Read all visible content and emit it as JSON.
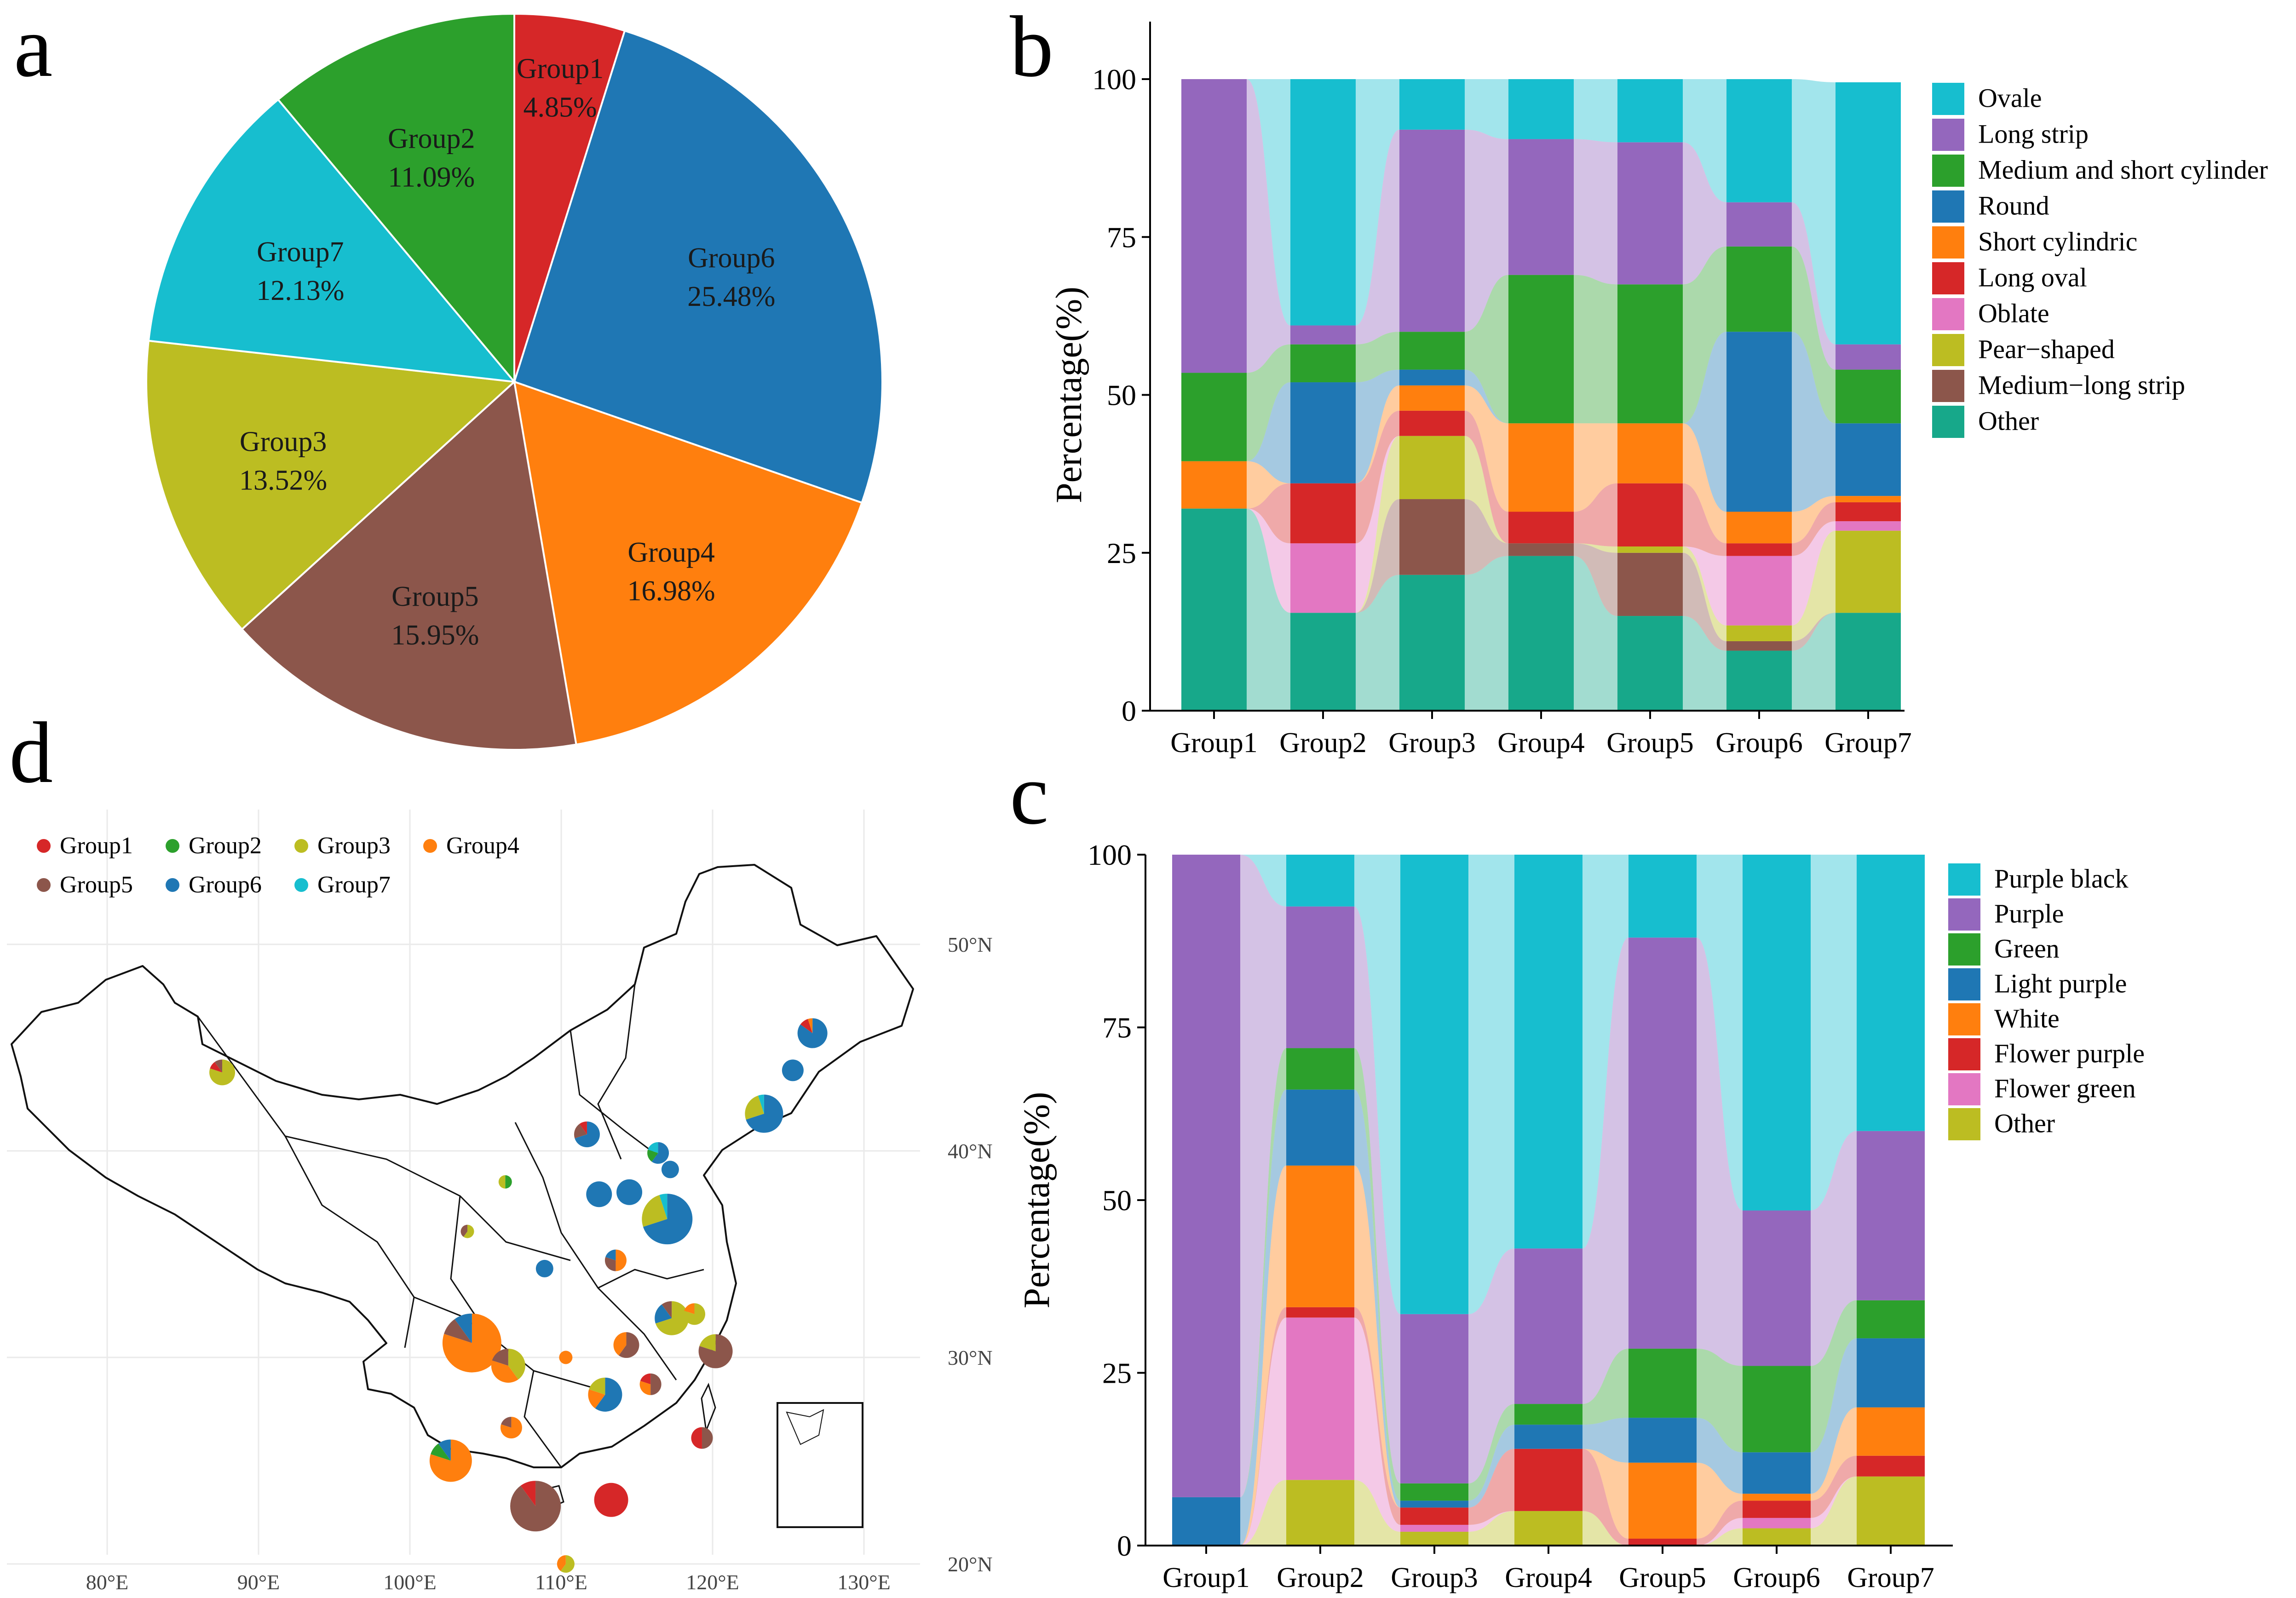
{
  "colors": {
    "group1": "#d62728",
    "group2": "#2ca02c",
    "group3": "#bcbd22",
    "group4": "#ff7f0e",
    "group5": "#8c564b",
    "group6": "#1f77b4",
    "group7": "#17becf",
    "ovale": "#17becf",
    "long_strip": "#9467bd",
    "med_short_cyl": "#2ca02c",
    "round": "#1f77b4",
    "short_cyl": "#ff7f0e",
    "long_oval": "#d62728",
    "oblate": "#e377c2",
    "pear": "#bcbd22",
    "med_long_strip": "#8c564b",
    "other_b": "#17a88a"
  },
  "panels": {
    "a": "a",
    "b": "b",
    "c": "c",
    "d": "d"
  },
  "chart_data": [
    {
      "id": "a",
      "type": "pie",
      "slices": [
        {
          "label": "Group1",
          "pct_label": "4.85%",
          "value": 4.85,
          "color_key": "group1"
        },
        {
          "label": "Group6",
          "pct_label": "25.48%",
          "value": 25.48,
          "color_key": "group6"
        },
        {
          "label": "Group4",
          "pct_label": "16.98%",
          "value": 16.98,
          "color_key": "group4"
        },
        {
          "label": "Group5",
          "pct_label": "15.95%",
          "value": 15.95,
          "color_key": "group5"
        },
        {
          "label": "Group3",
          "pct_label": "13.52%",
          "value": 13.52,
          "color_key": "group3"
        },
        {
          "label": "Group7",
          "pct_label": "12.13%",
          "value": 12.13,
          "color_key": "group7"
        },
        {
          "label": "Group2",
          "pct_label": "11.09%",
          "value": 11.09,
          "color_key": "group2"
        }
      ]
    },
    {
      "id": "b",
      "type": "bar",
      "stacked": true,
      "ylabel": "Percentage(%)",
      "ylim": [
        0,
        100
      ],
      "yticks": [
        "0",
        "25",
        "50",
        "75",
        "100"
      ],
      "categories": [
        "Group1",
        "Group2",
        "Group3",
        "Group4",
        "Group5",
        "Group6",
        "Group7"
      ],
      "series": [
        {
          "name": "Other",
          "color_key": "other_b",
          "values": [
            32,
            15.5,
            21.5,
            24.5,
            15,
            9.5,
            15.5
          ]
        },
        {
          "name": "Medium−long strip",
          "color_key": "med_long_strip",
          "values": [
            0,
            0,
            12,
            2,
            10,
            1.5,
            0
          ]
        },
        {
          "name": "Pear−shaped",
          "color_key": "pear",
          "values": [
            0,
            0,
            10,
            0,
            1,
            2.5,
            13
          ]
        },
        {
          "name": "Oblate",
          "color_key": "oblate",
          "values": [
            0,
            11,
            0,
            0,
            0,
            11,
            1.5
          ]
        },
        {
          "name": "Long oval",
          "color_key": "long_oval",
          "values": [
            0,
            9.5,
            4,
            5,
            10,
            2,
            3
          ]
        },
        {
          "name": "Short cylindric",
          "color_key": "short_cyl",
          "values": [
            7.5,
            0,
            4,
            14,
            9.5,
            5,
            1
          ]
        },
        {
          "name": "Round",
          "color_key": "round",
          "values": [
            0,
            16,
            2.5,
            0,
            0,
            28.5,
            11.5
          ]
        },
        {
          "name": "Medium and short cylinder",
          "color_key": "med_short_cyl",
          "values": [
            14,
            6,
            6,
            23.5,
            22,
            13.5,
            8.5
          ]
        },
        {
          "name": "Long strip",
          "color_key": "long_strip",
          "values": [
            46.5,
            3,
            32,
            21.5,
            22.5,
            7,
            4
          ]
        },
        {
          "name": "Ovale",
          "color_key": "ovale",
          "values": [
            0,
            39,
            8,
            9.5,
            10,
            19.5,
            41.5
          ]
        }
      ],
      "legend_order": [
        "Ovale",
        "Long strip",
        "Medium and short cylinder",
        "Round",
        "Short cylindric",
        "Long oval",
        "Oblate",
        "Pear−shaped",
        "Medium−long strip",
        "Other"
      ]
    },
    {
      "id": "c",
      "type": "bar",
      "stacked": true,
      "ylabel": "Percentage(%)",
      "ylim": [
        0,
        100
      ],
      "yticks": [
        "0",
        "25",
        "50",
        "75",
        "100"
      ],
      "categories": [
        "Group1",
        "Group2",
        "Group3",
        "Group4",
        "Group5",
        "Group6",
        "Group7"
      ],
      "series": [
        {
          "name": "Other",
          "color_key": "pear",
          "values": [
            0,
            9.5,
            2,
            5,
            0,
            2.5,
            10
          ]
        },
        {
          "name": "Flower green",
          "color_key": "oblate",
          "values": [
            0,
            23.5,
            1,
            0,
            0,
            1.5,
            0
          ]
        },
        {
          "name": "Flower purple",
          "color_key": "long_oval",
          "values": [
            0,
            1.5,
            2.5,
            9,
            1,
            2.5,
            3
          ]
        },
        {
          "name": "White",
          "color_key": "short_cyl",
          "values": [
            0,
            20.5,
            0,
            0,
            11,
            1,
            7
          ]
        },
        {
          "name": "Light purple",
          "color_key": "round",
          "values": [
            7,
            11,
            1,
            3.5,
            6.5,
            6,
            10
          ]
        },
        {
          "name": "Green",
          "color_key": "med_short_cyl",
          "values": [
            0,
            6,
            2.5,
            3,
            10,
            12.5,
            5.5
          ]
        },
        {
          "name": "Purple",
          "color_key": "long_strip",
          "values": [
            93,
            20.5,
            24.5,
            22.5,
            59.5,
            22.5,
            24.5
          ]
        },
        {
          "name": "Purple black",
          "color_key": "ovale",
          "values": [
            0,
            7.5,
            66.5,
            57,
            12,
            51.5,
            40
          ]
        }
      ],
      "legend_order": [
        "Purple black",
        "Purple",
        "Green",
        "Light purple",
        "White",
        "Flower purple",
        "Flower green",
        "Other"
      ]
    },
    {
      "id": "d",
      "type": "map",
      "legend": [
        "Group1",
        "Group2",
        "Group3",
        "Group4",
        "Group5",
        "Group6",
        "Group7"
      ],
      "x_ticks": [
        "80°E",
        "90°E",
        "100°E",
        "110°E",
        "120°E",
        "130°E"
      ],
      "x_values": [
        80,
        90,
        100,
        110,
        120,
        130
      ],
      "y_ticks": [
        "50°N",
        "40°N",
        "30°N",
        "20°N"
      ],
      "y_values": [
        50,
        40,
        30,
        20
      ],
      "sites": [
        {
          "lon": 87.6,
          "lat": 43.8,
          "n": 4,
          "mix": [
            [
              "group3",
              0.8
            ],
            [
              "group1",
              0.1
            ],
            [
              "group5",
              0.1
            ]
          ]
        },
        {
          "lon": 126.6,
          "lat": 45.7,
          "n": 5,
          "mix": [
            [
              "group6",
              0.85
            ],
            [
              "group1",
              0.1
            ],
            [
              "group4",
              0.05
            ]
          ]
        },
        {
          "lon": 125.3,
          "lat": 43.9,
          "n": 3,
          "mix": [
            [
              "group6",
              1.0
            ]
          ]
        },
        {
          "lon": 123.4,
          "lat": 41.8,
          "n": 7,
          "mix": [
            [
              "group6",
              0.7
            ],
            [
              "group3",
              0.25
            ],
            [
              "group7",
              0.05
            ]
          ]
        },
        {
          "lon": 111.7,
          "lat": 40.8,
          "n": 4,
          "mix": [
            [
              "group6",
              0.7
            ],
            [
              "group5",
              0.2
            ],
            [
              "group1",
              0.1
            ]
          ]
        },
        {
          "lon": 116.4,
          "lat": 39.9,
          "n": 3,
          "mix": [
            [
              "group6",
              0.6
            ],
            [
              "group2",
              0.2
            ],
            [
              "group7",
              0.2
            ]
          ]
        },
        {
          "lon": 117.2,
          "lat": 39.1,
          "n": 2,
          "mix": [
            [
              "group6",
              1.0
            ]
          ]
        },
        {
          "lon": 106.3,
          "lat": 38.5,
          "n": 1,
          "mix": [
            [
              "group2",
              0.5
            ],
            [
              "group3",
              0.5
            ]
          ]
        },
        {
          "lon": 112.5,
          "lat": 37.9,
          "n": 4,
          "mix": [
            [
              "group6",
              1.0
            ]
          ]
        },
        {
          "lon": 114.5,
          "lat": 38.0,
          "n": 4,
          "mix": [
            [
              "group6",
              1.0
            ]
          ]
        },
        {
          "lon": 117.0,
          "lat": 36.7,
          "n": 10,
          "mix": [
            [
              "group6",
              0.7
            ],
            [
              "group3",
              0.25
            ],
            [
              "group7",
              0.05
            ]
          ]
        },
        {
          "lon": 103.8,
          "lat": 36.1,
          "n": 1,
          "mix": [
            [
              "group3",
              0.6
            ],
            [
              "group5",
              0.4
            ]
          ]
        },
        {
          "lon": 108.9,
          "lat": 34.3,
          "n": 2,
          "mix": [
            [
              "group6",
              1.0
            ]
          ]
        },
        {
          "lon": 113.6,
          "lat": 34.7,
          "n": 3,
          "mix": [
            [
              "group4",
              0.5
            ],
            [
              "group5",
              0.3
            ],
            [
              "group6",
              0.2
            ]
          ]
        },
        {
          "lon": 117.3,
          "lat": 31.9,
          "n": 6,
          "mix": [
            [
              "group3",
              0.7
            ],
            [
              "group6",
              0.2
            ],
            [
              "group5",
              0.1
            ]
          ]
        },
        {
          "lon": 118.8,
          "lat": 32.1,
          "n": 3,
          "mix": [
            [
              "group3",
              0.8
            ],
            [
              "group4",
              0.2
            ]
          ]
        },
        {
          "lon": 104.1,
          "lat": 30.7,
          "n": 12,
          "mix": [
            [
              "group4",
              0.8
            ],
            [
              "group5",
              0.1
            ],
            [
              "group6",
              0.1
            ]
          ]
        },
        {
          "lon": 106.5,
          "lat": 29.6,
          "n": 6,
          "mix": [
            [
              "group3",
              0.4
            ],
            [
              "group4",
              0.4
            ],
            [
              "group5",
              0.2
            ]
          ]
        },
        {
          "lon": 114.3,
          "lat": 30.6,
          "n": 4,
          "mix": [
            [
              "group5",
              0.6
            ],
            [
              "group4",
              0.4
            ]
          ]
        },
        {
          "lon": 120.2,
          "lat": 30.3,
          "n": 6,
          "mix": [
            [
              "group5",
              0.8
            ],
            [
              "group3",
              0.2
            ]
          ]
        },
        {
          "lon": 110.3,
          "lat": 30.0,
          "n": 1,
          "mix": [
            [
              "group4",
              1.0
            ]
          ]
        },
        {
          "lon": 112.9,
          "lat": 28.2,
          "n": 6,
          "mix": [
            [
              "group6",
              0.6
            ],
            [
              "group4",
              0.2
            ],
            [
              "group3",
              0.2
            ]
          ]
        },
        {
          "lon": 115.9,
          "lat": 28.7,
          "n": 3,
          "mix": [
            [
              "group5",
              0.5
            ],
            [
              "group4",
              0.3
            ],
            [
              "group1",
              0.2
            ]
          ]
        },
        {
          "lon": 106.7,
          "lat": 26.6,
          "n": 3,
          "mix": [
            [
              "group4",
              0.8
            ],
            [
              "group5",
              0.2
            ]
          ]
        },
        {
          "lon": 119.3,
          "lat": 26.1,
          "n": 3,
          "mix": [
            [
              "group5",
              0.5
            ],
            [
              "group1",
              0.5
            ]
          ]
        },
        {
          "lon": 102.7,
          "lat": 25.0,
          "n": 8,
          "mix": [
            [
              "group4",
              0.8
            ],
            [
              "group2",
              0.1
            ],
            [
              "group6",
              0.1
            ]
          ]
        },
        {
          "lon": 108.3,
          "lat": 22.8,
          "n": 10,
          "mix": [
            [
              "group5",
              0.9
            ],
            [
              "group1",
              0.1
            ]
          ]
        },
        {
          "lon": 113.3,
          "lat": 23.1,
          "n": 6,
          "mix": [
            [
              "group1",
              1.0
            ]
          ]
        },
        {
          "lon": 110.3,
          "lat": 20.0,
          "n": 2,
          "mix": [
            [
              "group3",
              0.6
            ],
            [
              "group4",
              0.4
            ]
          ]
        }
      ]
    }
  ]
}
